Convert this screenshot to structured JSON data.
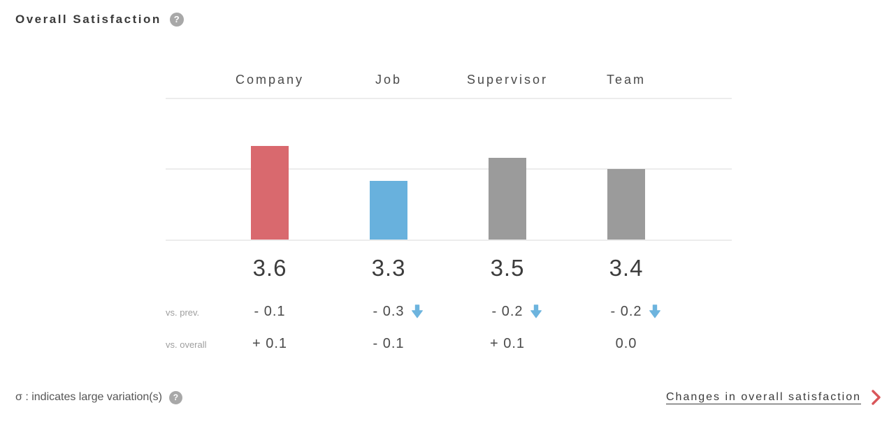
{
  "header": {
    "title": "Overall Satisfaction"
  },
  "icons": {
    "help": "?"
  },
  "chart_data": {
    "type": "bar",
    "title": "Overall Satisfaction",
    "categories": [
      "Company",
      "Job",
      "Supervisor",
      "Team"
    ],
    "values": [
      3.6,
      3.3,
      3.5,
      3.4
    ],
    "bar_colors": [
      "#d9696e",
      "#68b1dd",
      "#9b9b9b",
      "#9b9b9b"
    ],
    "ylim": [
      2.8,
      4.0
    ],
    "gridline_values": [
      2.8,
      3.4,
      4.0
    ],
    "grid": "horizontal gridlines, no axis labels",
    "legend": "none",
    "comparison_rows": [
      {
        "label": "vs. prev.",
        "values": [
          "- 0.1",
          "- 0.3",
          "- 0.2",
          "- 0.2"
        ],
        "down_arrows": [
          false,
          true,
          true,
          true
        ]
      },
      {
        "label": "vs. overall",
        "values": [
          "+ 0.1",
          "- 0.1",
          "+ 0.1",
          "0.0"
        ],
        "down_arrows": [
          false,
          false,
          false,
          false
        ]
      }
    ]
  },
  "footer": {
    "sigma_note": "σ : indicates large variation(s)",
    "link_label": "Changes in overall satisfaction"
  },
  "colors": {
    "accent_red": "#d9696e",
    "accent_blue": "#68b1dd",
    "neutral_gray": "#9b9b9b",
    "arrow_blue": "#6db4de",
    "chevron_red": "#d9565a",
    "gridline": "#ececec"
  }
}
